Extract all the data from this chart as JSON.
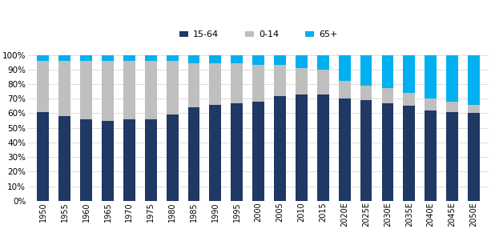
{
  "years": [
    "1950",
    "1955",
    "1960",
    "1965",
    "1970",
    "1975",
    "1980",
    "1985",
    "1990",
    "1995",
    "2000",
    "2005",
    "2010",
    "2015",
    "2020E",
    "2025E",
    "2030E",
    "2035E",
    "2040E",
    "2045E",
    "2050E"
  ],
  "age_15_64": [
    61,
    58,
    56,
    55,
    56,
    56,
    59,
    64,
    66,
    67,
    68,
    72,
    73,
    73,
    70,
    69,
    67,
    65,
    62,
    61,
    60
  ],
  "age_0_14": [
    35,
    38,
    40,
    41,
    40,
    40,
    37,
    30,
    28,
    27,
    25,
    21,
    18,
    17,
    12,
    10,
    10,
    9,
    8,
    7,
    6
  ],
  "age_65plus": [
    4,
    4,
    4,
    4,
    4,
    4,
    4,
    6,
    6,
    6,
    7,
    7,
    9,
    10,
    18,
    21,
    23,
    26,
    30,
    32,
    34
  ],
  "color_15_64": "#1f3864",
  "color_0_14": "#bfbfbf",
  "color_65plus": "#00b0f0",
  "legend_labels": [
    "15-64",
    "0-14",
    "65+"
  ],
  "bar_width": 0.55,
  "background_color": "#ffffff"
}
